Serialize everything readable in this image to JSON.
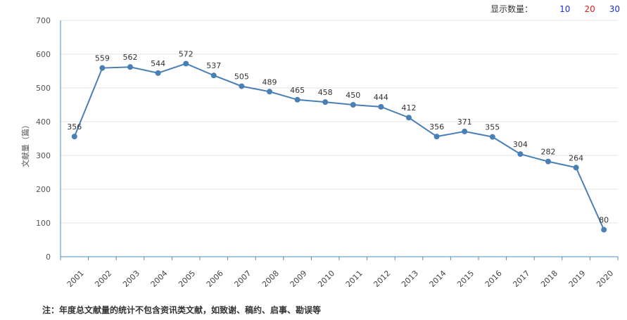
{
  "display_count": {
    "label": "显示数量：",
    "options": [
      "10",
      "20",
      "30"
    ]
  },
  "chart_data": {
    "type": "line",
    "ylabel": "文献量（篇）",
    "xlabel": "",
    "title": "",
    "ylim": [
      0,
      700
    ],
    "yticks": [
      0,
      100,
      200,
      300,
      400,
      500,
      600,
      700
    ],
    "grid": true,
    "legend": "none",
    "line_color": "#4a7fb5",
    "categories": [
      "2001",
      "2002",
      "2003",
      "2004",
      "2005",
      "2006",
      "2007",
      "2008",
      "2009",
      "2010",
      "2011",
      "2012",
      "2013",
      "2014",
      "2015",
      "2016",
      "2017",
      "2018",
      "2019",
      "2020"
    ],
    "values": [
      356,
      559,
      562,
      544,
      572,
      537,
      505,
      489,
      465,
      458,
      450,
      444,
      412,
      356,
      371,
      355,
      304,
      282,
      264,
      80
    ]
  },
  "note": "注：年度总文献量的统计不包含资讯类文献，如致谢、稿约、启事、勘误等"
}
